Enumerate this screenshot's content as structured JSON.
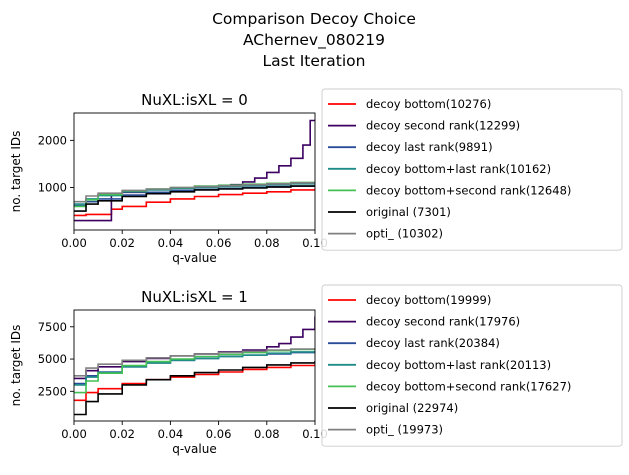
{
  "figure": {
    "suptitle_lines": [
      "Comparison Decoy Choice",
      "AChernev_080219",
      "Last Iteration"
    ]
  },
  "chart_data": [
    {
      "type": "line",
      "title": "NuXL:isXL = 0",
      "xlabel": "q-value",
      "ylabel": "no. target IDs",
      "xlim": [
        0.0,
        0.1
      ],
      "ylim": [
        100,
        2580
      ],
      "xticks": [
        "0.00",
        "0.02",
        "0.04",
        "0.06",
        "0.08",
        "0.10"
      ],
      "yticks": [
        1000,
        2000
      ],
      "legend_position": "outside-right",
      "series": [
        {
          "name": "decoy bottom(10276)",
          "color": "#ff0000",
          "x": [
            0,
            0.005,
            0.0155,
            0.02,
            0.03,
            0.04,
            0.05,
            0.06,
            0.07,
            0.08,
            0.09,
            0.1
          ],
          "y": [
            410,
            430,
            540,
            600,
            690,
            760,
            810,
            850,
            880,
            910,
            950,
            980
          ]
        },
        {
          "name": "decoy second rank(12299)",
          "color": "#3b0060",
          "x": [
            0,
            0.015,
            0.0155,
            0.02,
            0.03,
            0.04,
            0.05,
            0.06,
            0.065,
            0.07,
            0.075,
            0.08,
            0.085,
            0.09,
            0.095,
            0.098,
            0.1
          ],
          "y": [
            300,
            300,
            850,
            900,
            960,
            990,
            1010,
            1030,
            1060,
            1120,
            1200,
            1320,
            1460,
            1620,
            1900,
            2420,
            2440
          ]
        },
        {
          "name": "decoy last rank(9891)",
          "color": "#2a4d9a",
          "x": [
            0,
            0.005,
            0.01,
            0.02,
            0.03,
            0.04,
            0.05,
            0.06,
            0.07,
            0.08,
            0.09,
            0.1
          ],
          "y": [
            620,
            700,
            760,
            840,
            900,
            940,
            960,
            980,
            1000,
            1020,
            1030,
            1040
          ]
        },
        {
          "name": "decoy bottom+last rank(10162)",
          "color": "#1f8c88",
          "x": [
            0,
            0.005,
            0.01,
            0.02,
            0.03,
            0.04,
            0.05,
            0.06,
            0.07,
            0.08,
            0.09,
            0.1
          ],
          "y": [
            650,
            760,
            830,
            910,
            950,
            980,
            1000,
            1020,
            1040,
            1060,
            1080,
            1100
          ]
        },
        {
          "name": "decoy bottom+second rank(12648)",
          "color": "#44c054",
          "x": [
            0,
            0.005,
            0.01,
            0.02,
            0.03,
            0.04,
            0.05,
            0.06,
            0.07,
            0.08,
            0.09,
            0.1
          ],
          "y": [
            600,
            740,
            850,
            930,
            970,
            1000,
            1030,
            1050,
            1070,
            1090,
            1110,
            1130
          ]
        },
        {
          "name": "original (7301)",
          "color": "#000000",
          "x": [
            0,
            0.005,
            0.01,
            0.02,
            0.03,
            0.04,
            0.05,
            0.06,
            0.07,
            0.08,
            0.09,
            0.1
          ],
          "y": [
            500,
            650,
            720,
            810,
            870,
            910,
            950,
            970,
            990,
            1010,
            1030,
            1050
          ]
        },
        {
          "name": "opti_ (10302)",
          "color": "#808080",
          "x": [
            0,
            0.005,
            0.01,
            0.02,
            0.03,
            0.04,
            0.05,
            0.06,
            0.07,
            0.08,
            0.09,
            0.1
          ],
          "y": [
            700,
            820,
            880,
            940,
            970,
            1000,
            1020,
            1040,
            1060,
            1080,
            1100,
            1120
          ]
        }
      ]
    },
    {
      "type": "line",
      "title": "NuXL:isXL = 1",
      "xlabel": "q-value",
      "ylabel": "no. target IDs",
      "xlim": [
        0.0,
        0.1
      ],
      "ylim": [
        200,
        8800
      ],
      "xticks": [
        "0.00",
        "0.02",
        "0.04",
        "0.06",
        "0.08",
        "0.10"
      ],
      "yticks": [
        2500,
        5000,
        7500
      ],
      "legend_position": "outside-right",
      "series": [
        {
          "name": "decoy bottom(19999)",
          "color": "#ff0000",
          "x": [
            0,
            0.005,
            0.01,
            0.02,
            0.03,
            0.04,
            0.05,
            0.06,
            0.07,
            0.08,
            0.09,
            0.1
          ],
          "y": [
            1800,
            2400,
            2700,
            3100,
            3400,
            3600,
            3800,
            4000,
            4200,
            4350,
            4500,
            4600
          ]
        },
        {
          "name": "decoy second rank(17976)",
          "color": "#3b0060",
          "x": [
            0,
            0.005,
            0.01,
            0.02,
            0.03,
            0.04,
            0.05,
            0.06,
            0.07,
            0.08,
            0.085,
            0.09,
            0.095,
            0.1
          ],
          "y": [
            3500,
            4100,
            4400,
            4800,
            5050,
            5250,
            5400,
            5550,
            5700,
            5950,
            6200,
            6700,
            7300,
            8300
          ]
        },
        {
          "name": "decoy last rank(20384)",
          "color": "#2a4d9a",
          "x": [
            0,
            0.005,
            0.01,
            0.02,
            0.03,
            0.04,
            0.05,
            0.06,
            0.07,
            0.08,
            0.09,
            0.1
          ],
          "y": [
            3100,
            3700,
            4000,
            4400,
            4700,
            4900,
            5050,
            5200,
            5300,
            5400,
            5500,
            5600
          ]
        },
        {
          "name": "decoy bottom+last rank(20113)",
          "color": "#1f8c88",
          "x": [
            0,
            0.005,
            0.01,
            0.02,
            0.03,
            0.04,
            0.05,
            0.06,
            0.07,
            0.08,
            0.09,
            0.1
          ],
          "y": [
            3000,
            3600,
            3950,
            4400,
            4700,
            4900,
            5050,
            5200,
            5300,
            5450,
            5550,
            5650
          ]
        },
        {
          "name": "decoy bottom+second rank(17627)",
          "color": "#44c054",
          "x": [
            0,
            0.005,
            0.01,
            0.02,
            0.03,
            0.04,
            0.05,
            0.06,
            0.07,
            0.08,
            0.09,
            0.1
          ],
          "y": [
            2400,
            3300,
            3900,
            4500,
            4800,
            5000,
            5200,
            5350,
            5500,
            5650,
            5750,
            5850
          ]
        },
        {
          "name": "original (22974)",
          "color": "#000000",
          "x": [
            0,
            0.005,
            0.01,
            0.02,
            0.03,
            0.04,
            0.05,
            0.06,
            0.07,
            0.08,
            0.09,
            0.1
          ],
          "y": [
            700,
            1700,
            2300,
            3000,
            3400,
            3700,
            3950,
            4150,
            4350,
            4550,
            4700,
            4850
          ]
        },
        {
          "name": "opti_ (19973)",
          "color": "#808080",
          "x": [
            0,
            0.005,
            0.01,
            0.02,
            0.03,
            0.04,
            0.05,
            0.06,
            0.07,
            0.08,
            0.09,
            0.1
          ],
          "y": [
            3700,
            4300,
            4600,
            4900,
            5100,
            5250,
            5400,
            5500,
            5600,
            5700,
            5780,
            5850
          ]
        }
      ]
    }
  ]
}
